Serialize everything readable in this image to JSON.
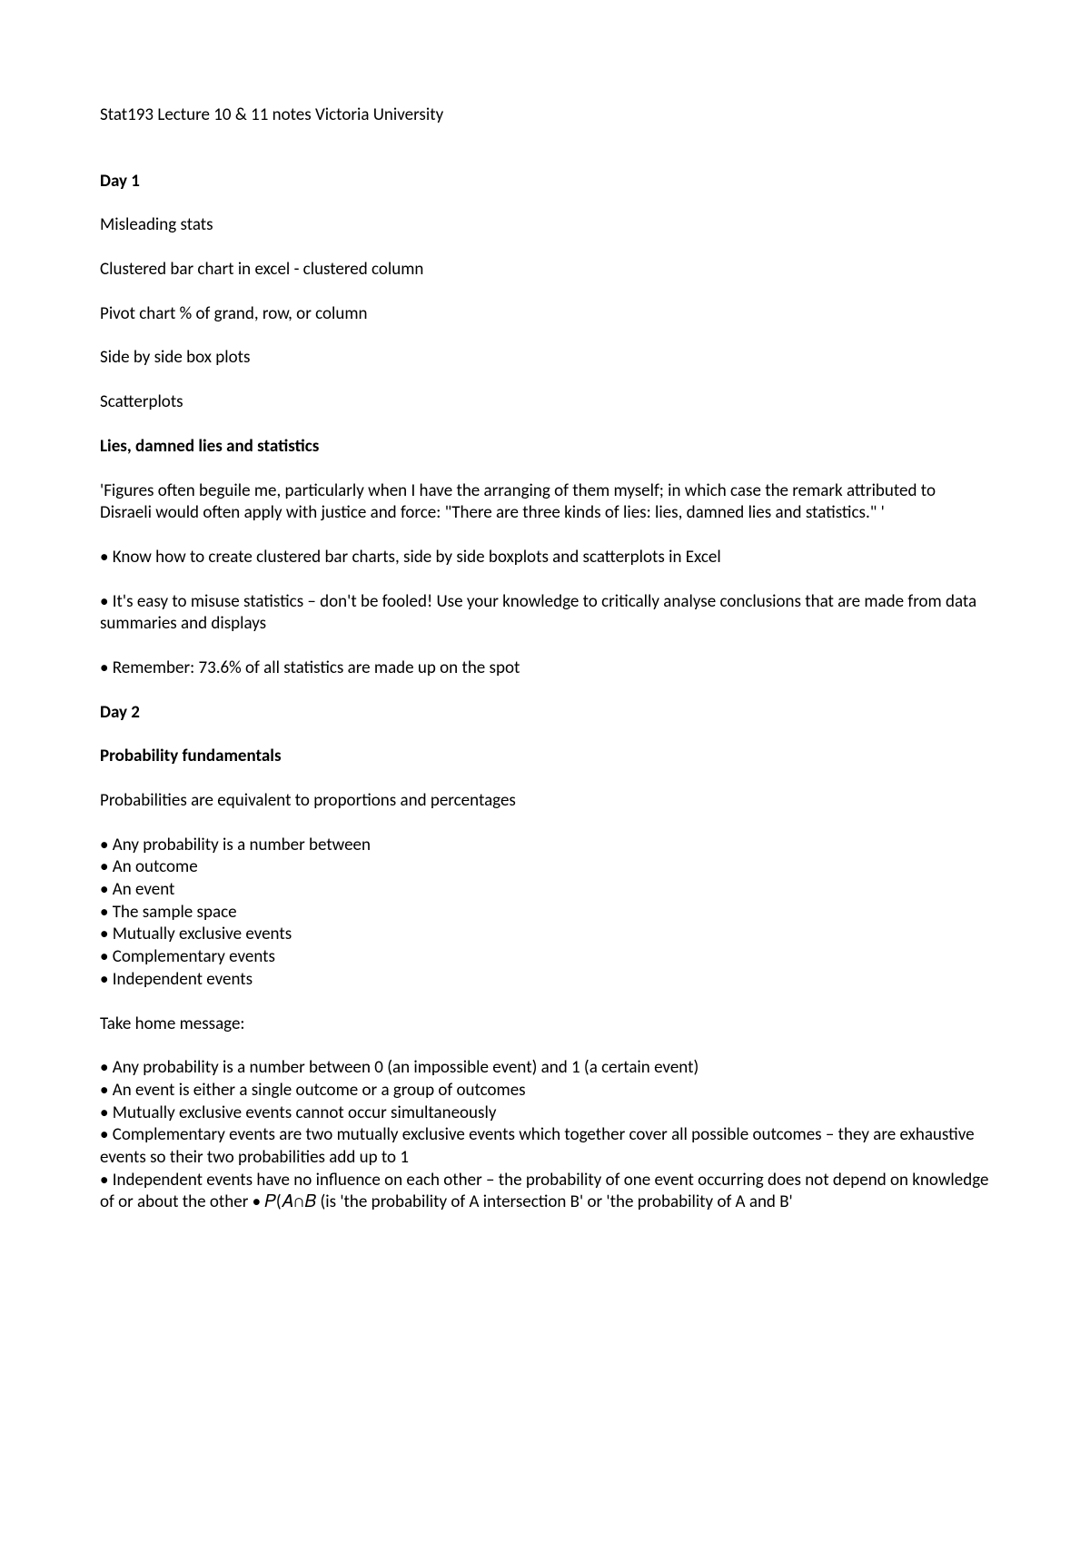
{
  "page_title": "Stat193 Lecture 10 & 11  notes Victoria University",
  "day1": {
    "heading": "Day 1",
    "misleading": "Misleading stats",
    "clustered": "Clustered bar chart in excel - clustered column",
    "pivot": "Pivot chart % of grand, row, or column",
    "boxplots": "Side by side box plots",
    "scatterplots": "Scatterplots",
    "lies_heading": "Lies, damned lies and statistics",
    "quote": "'Figures often beguile me, particularly when I have the arranging of them myself; in which case the remark attributed to Disraeli would often apply with justice and force: \"There are three kinds of lies: lies, damned lies and statistics.\" '",
    "bullet1": "• Know how to create clustered bar charts, side by side boxplots and scatterplots in Excel",
    "bullet2": "• It's easy to misuse statistics – don't be fooled! Use your knowledge to critically analyse conclusions that are made from data summaries and displays",
    "bullet3": "• Remember: 73.6% of all statistics are made up on the spot"
  },
  "day2": {
    "heading": "Day 2",
    "prob_heading": "Probability fundamentals",
    "prob_intro": "Probabilities are equivalent to proportions and percentages",
    "list1": [
      "• Any probability is a number between",
      "• An outcome",
      "• An event",
      "• The sample space",
      "• Mutually exclusive events",
      "• Complementary events",
      "• Independent events"
    ],
    "take_home_heading": "Take home message:",
    "list2": [
      "• Any probability is a number between 0 (an impossible event) and 1 (a certain event)",
      "• An event is either a single outcome or a group of outcomes",
      "• Mutually exclusive events cannot occur simultaneously",
      "• Complementary events are two mutually exclusive events which together cover all possible outcomes – they are exhaustive events so their two probabilities add up to 1",
      "• Independent events have no influence on each other – the probability of one event occurring does not depend on knowledge of or about the other • 𝑃(𝐴∩𝐵 (is 'the probability of A intersection B' or 'the probability of A and B'"
    ]
  }
}
